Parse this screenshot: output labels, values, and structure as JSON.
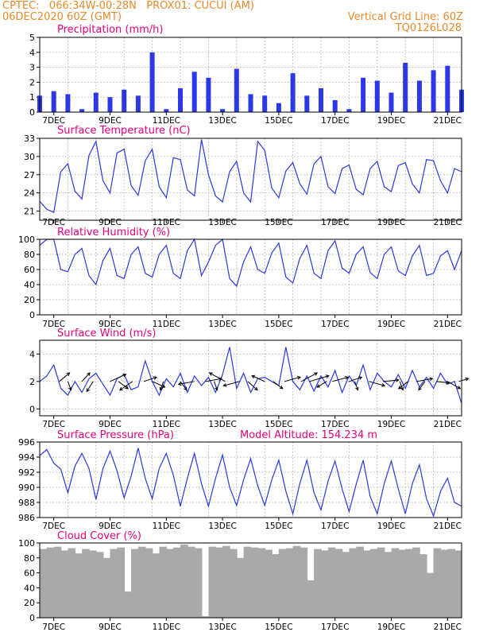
{
  "header": {
    "line1_left": "CPTEC:   066:34W-00:28N   PROX01: CUCUI (AM)",
    "line2_left": "06DEC2020 60Z (GMT)",
    "line2_right": "Vertical Grid Line: 60Z",
    "line3_right": "TQ0126L028"
  },
  "colors": {
    "title": "#e6007e",
    "header": "#e8892a",
    "line": "#2a38e6",
    "bar": "#2a38e6",
    "cloud": "#a9a9a9",
    "arrow": "#000000"
  },
  "chart_data": [
    {
      "type": "bar",
      "title": "Precipitation (mm/h)",
      "ylim": [
        0,
        5
      ],
      "yticks": [
        "0",
        "1",
        "2",
        "3",
        "4",
        "5"
      ],
      "grid": true,
      "x_tick_labels": [
        "7DEC",
        "9DEC",
        "11DEC",
        "13DEC",
        "15DEC",
        "17DEC",
        "19DEC",
        "21DEC"
      ],
      "days": [
        0.0,
        0.5,
        1.0,
        1.5,
        2.0,
        2.5,
        3.0,
        3.5,
        4.0,
        4.5,
        5.0,
        5.5,
        6.0,
        6.5,
        7.0,
        7.5,
        8.0,
        8.5,
        9.0,
        9.5,
        10.0,
        10.5,
        11.0,
        11.5,
        12.0,
        12.5,
        13.0,
        13.5,
        14.0,
        14.5,
        15.0
      ],
      "values": [
        1.1,
        1.4,
        1.2,
        0.2,
        1.3,
        1.0,
        1.5,
        1.1,
        4.0,
        0.2,
        1.6,
        2.7,
        2.3,
        0.2,
        2.9,
        1.2,
        1.1,
        0.6,
        2.6,
        1.1,
        1.6,
        0.8,
        0.2,
        2.3,
        2.1,
        1.3,
        3.3,
        2.1,
        2.8,
        3.1,
        1.5
      ]
    },
    {
      "type": "line",
      "title": "Surface Temperature (nC)",
      "ylim": [
        19.5,
        33
      ],
      "yticks": [
        "21",
        "24",
        "27",
        "30",
        "33"
      ],
      "grid": true,
      "x_tick_labels": [
        "7DEC",
        "9DEC",
        "11DEC",
        "13DEC",
        "15DEC",
        "17DEC",
        "19DEC",
        "21DEC"
      ],
      "days": [
        0.0,
        0.25,
        0.5,
        0.75,
        1.0,
        1.25,
        1.5,
        1.75,
        2.0,
        2.25,
        2.5,
        2.75,
        3.0,
        3.25,
        3.5,
        3.75,
        4.0,
        4.25,
        4.5,
        4.75,
        5.0,
        5.25,
        5.5,
        5.75,
        6.0,
        6.25,
        6.5,
        6.75,
        7.0,
        7.25,
        7.5,
        7.75,
        8.0,
        8.25,
        8.5,
        8.75,
        9.0,
        9.25,
        9.5,
        9.75,
        10.0,
        10.25,
        10.5,
        10.75,
        11.0,
        11.25,
        11.5,
        11.75,
        12.0,
        12.25,
        12.5,
        12.75,
        13.0,
        13.25,
        13.5,
        13.75,
        14.0,
        14.25,
        14.5,
        14.75,
        15.0
      ],
      "values": [
        22.6,
        21.3,
        20.8,
        27.5,
        28.8,
        24.3,
        23.0,
        30.2,
        32.5,
        26.0,
        24.0,
        30.6,
        31.2,
        25.2,
        23.6,
        29.3,
        31.2,
        25.0,
        23.2,
        29.8,
        29.5,
        24.5,
        23.5,
        32.8,
        27.0,
        23.5,
        22.5,
        27.5,
        29.2,
        24.0,
        22.5,
        32.5,
        31.0,
        24.8,
        23.2,
        27.6,
        29.0,
        25.5,
        23.8,
        28.8,
        30.0,
        25.0,
        23.9,
        28.0,
        28.6,
        24.6,
        23.7,
        28.0,
        29.2,
        25.0,
        24.2,
        28.5,
        29.0,
        25.5,
        24.0,
        29.5,
        29.3,
        26.0,
        24.0,
        28.0,
        27.5
      ]
    },
    {
      "type": "line",
      "title": "Relative Humidity (%)",
      "ylim": [
        0,
        100
      ],
      "yticks": [
        "0",
        "20",
        "40",
        "60",
        "80",
        "100"
      ],
      "grid": true,
      "x_tick_labels": [
        "7DEC",
        "9DEC",
        "11DEC",
        "13DEC",
        "15DEC",
        "17DEC",
        "19DEC",
        "21DEC"
      ],
      "days": [
        0.0,
        0.25,
        0.5,
        0.75,
        1.0,
        1.25,
        1.5,
        1.75,
        2.0,
        2.25,
        2.5,
        2.75,
        3.0,
        3.25,
        3.5,
        3.75,
        4.0,
        4.25,
        4.5,
        4.75,
        5.0,
        5.25,
        5.5,
        5.75,
        6.0,
        6.25,
        6.5,
        6.75,
        7.0,
        7.25,
        7.5,
        7.75,
        8.0,
        8.25,
        8.5,
        8.75,
        9.0,
        9.25,
        9.5,
        9.75,
        10.0,
        10.25,
        10.5,
        10.75,
        11.0,
        11.25,
        11.5,
        11.75,
        12.0,
        12.25,
        12.5,
        12.75,
        13.0,
        13.25,
        13.5,
        13.75,
        14.0,
        14.25,
        14.5,
        14.75,
        15.0
      ],
      "values": [
        92,
        100,
        100,
        60,
        57,
        80,
        88,
        52,
        40,
        72,
        88,
        52,
        48,
        80,
        90,
        55,
        50,
        80,
        92,
        55,
        48,
        85,
        100,
        52,
        70,
        92,
        100,
        48,
        38,
        70,
        90,
        60,
        55,
        82,
        95,
        50,
        42,
        75,
        92,
        55,
        48,
        85,
        98,
        62,
        55,
        80,
        90,
        56,
        48,
        80,
        90,
        58,
        52,
        78,
        92,
        52,
        55,
        78,
        85,
        60,
        85
      ]
    },
    {
      "type": "line",
      "title": "Surface Wind (m/s)",
      "ylim": [
        -0.5,
        5
      ],
      "yticks": [
        "0",
        "2",
        "4"
      ],
      "grid": true,
      "x_tick_labels": [
        "7DEC",
        "9DEC",
        "11DEC",
        "13DEC",
        "15DEC",
        "17DEC",
        "19DEC",
        "21DEC"
      ],
      "days": [
        0.0,
        0.25,
        0.5,
        0.75,
        1.0,
        1.25,
        1.5,
        1.75,
        2.0,
        2.25,
        2.5,
        2.75,
        3.0,
        3.25,
        3.5,
        3.75,
        4.0,
        4.25,
        4.5,
        4.75,
        5.0,
        5.25,
        5.5,
        5.75,
        6.0,
        6.25,
        6.5,
        6.75,
        7.0,
        7.25,
        7.5,
        7.75,
        8.0,
        8.25,
        8.5,
        8.75,
        9.0,
        9.25,
        9.5,
        9.75,
        10.0,
        10.25,
        10.5,
        10.75,
        11.0,
        11.25,
        11.5,
        11.75,
        12.0,
        12.25,
        12.5,
        12.75,
        13.0,
        13.25,
        13.5,
        13.75,
        14.0,
        14.25,
        14.5,
        14.75,
        15.0
      ],
      "values": [
        2.0,
        2.4,
        3.2,
        1.5,
        1.0,
        2.0,
        1.2,
        2.2,
        2.6,
        1.8,
        1.0,
        2.2,
        2.5,
        1.4,
        1.6,
        3.5,
        2.0,
        1.0,
        2.2,
        1.6,
        2.6,
        1.2,
        2.4,
        1.7,
        2.3,
        1.2,
        2.5,
        4.5,
        1.5,
        2.6,
        1.2,
        2.2,
        2.3,
        2.0,
        1.7,
        4.5,
        2.0,
        1.4,
        2.4,
        1.3,
        2.4,
        1.6,
        2.8,
        1.2,
        2.4,
        1.7,
        3.2,
        1.4,
        2.6,
        2.0,
        1.6,
        2.5,
        1.5,
        2.8,
        1.6,
        2.3,
        1.5,
        2.6,
        1.8,
        2.0,
        0.4
      ],
      "wind_arrows": [
        {
          "day": 0.7,
          "dx": 0.32,
          "dy": 0.6
        },
        {
          "day": 1.0,
          "dx": 0.1,
          "dy": -0.6
        },
        {
          "day": 1.5,
          "dx": 0.25,
          "dy": 0.6
        },
        {
          "day": 1.9,
          "dx": -0.2,
          "dy": -0.7
        },
        {
          "day": 2.5,
          "dx": 0.5,
          "dy": 0.5
        },
        {
          "day": 2.8,
          "dx": 0.3,
          "dy": -0.5
        },
        {
          "day": 3.3,
          "dx": -0.4,
          "dy": -0.6
        },
        {
          "day": 3.7,
          "dx": 0.4,
          "dy": 0.3
        },
        {
          "day": 4.0,
          "dx": 0.4,
          "dy": -0.4
        },
        {
          "day": 4.4,
          "dx": -0.1,
          "dy": -0.6
        },
        {
          "day": 5.0,
          "dx": 0.2,
          "dy": -0.6
        },
        {
          "day": 5.5,
          "dx": -0.5,
          "dy": -0.2
        },
        {
          "day": 5.9,
          "dx": 0.5,
          "dy": 0.2
        },
        {
          "day": 6.2,
          "dx": 0.1,
          "dy": -0.6
        },
        {
          "day": 6.6,
          "dx": -0.5,
          "dy": 0.6
        },
        {
          "day": 7.1,
          "dx": -0.5,
          "dy": -0.3
        },
        {
          "day": 7.4,
          "dx": 0.3,
          "dy": -0.6
        },
        {
          "day": 8.0,
          "dx": -0.4,
          "dy": 0.4
        },
        {
          "day": 8.3,
          "dx": 0.3,
          "dy": -0.5
        },
        {
          "day": 8.7,
          "dx": 0.5,
          "dy": 0.3
        },
        {
          "day": 9.3,
          "dx": 0.5,
          "dy": 0.6
        },
        {
          "day": 9.6,
          "dx": 0.6,
          "dy": 0.4
        },
        {
          "day": 10.2,
          "dx": -0.3,
          "dy": -0.4
        },
        {
          "day": 10.4,
          "dx": 0.5,
          "dy": 0.3
        },
        {
          "day": 11.0,
          "dx": 0.4,
          "dy": 0.3
        },
        {
          "day": 11.2,
          "dx": 0.1,
          "dy": -0.6
        },
        {
          "day": 11.7,
          "dx": 0.5,
          "dy": -0.3
        },
        {
          "day": 12.2,
          "dx": 0.5,
          "dy": 0.1
        },
        {
          "day": 12.8,
          "dx": 0.1,
          "dy": -0.6
        },
        {
          "day": 13.1,
          "dx": -0.3,
          "dy": -0.5
        },
        {
          "day": 13.4,
          "dx": 0.5,
          "dy": 0.2
        },
        {
          "day": 13.7,
          "dx": -0.2,
          "dy": -0.6
        },
        {
          "day": 14.1,
          "dx": 0.4,
          "dy": -0.1
        },
        {
          "day": 14.5,
          "dx": 0.4,
          "dy": -0.5
        },
        {
          "day": 14.9,
          "dx": 0.3,
          "dy": 0.2
        }
      ]
    },
    {
      "type": "line",
      "title": "Surface Pressure (hPa)",
      "subtitle": "Model Altitude: 154.234 m",
      "ylim": [
        986,
        996
      ],
      "yticks": [
        "986",
        "988",
        "990",
        "992",
        "994",
        "996"
      ],
      "grid": true,
      "x_tick_labels": [
        "7DEC",
        "9DEC",
        "11DEC",
        "13DEC",
        "15DEC",
        "17DEC",
        "19DEC",
        "21DEC"
      ],
      "days": [
        0.0,
        0.25,
        0.5,
        0.75,
        1.0,
        1.25,
        1.5,
        1.75,
        2.0,
        2.25,
        2.5,
        2.75,
        3.0,
        3.25,
        3.5,
        3.75,
        4.0,
        4.25,
        4.5,
        4.75,
        5.0,
        5.25,
        5.5,
        5.75,
        6.0,
        6.25,
        6.5,
        6.75,
        7.0,
        7.25,
        7.5,
        7.75,
        8.0,
        8.25,
        8.5,
        8.75,
        9.0,
        9.25,
        9.5,
        9.75,
        10.0,
        10.25,
        10.5,
        10.75,
        11.0,
        11.25,
        11.5,
        11.75,
        12.0,
        12.25,
        12.5,
        12.75,
        13.0,
        13.25,
        13.5,
        13.75,
        14.0,
        14.25,
        14.5,
        14.75,
        15.0
      ],
      "values": [
        994.2,
        995.0,
        993.2,
        992.4,
        989.3,
        992.8,
        994.5,
        992.5,
        988.4,
        992.5,
        994.8,
        992.2,
        988.6,
        991.5,
        995.2,
        991.2,
        988.5,
        992.5,
        994.5,
        991.6,
        987.5,
        991.2,
        994.5,
        990.5,
        987.5,
        991.2,
        994.3,
        990.0,
        987.6,
        991.0,
        993.8,
        990.2,
        987.6,
        991.0,
        993.6,
        989.5,
        986.5,
        990.5,
        993.6,
        989.3,
        987.0,
        990.8,
        993.5,
        989.8,
        986.8,
        990.4,
        993.6,
        988.8,
        986.5,
        990.5,
        993.5,
        989.8,
        986.5,
        990.5,
        993.0,
        988.5,
        986.2,
        989.5,
        991.2,
        988.0,
        987.5
      ]
    },
    {
      "type": "bar",
      "title": "Cloud Cover (%)",
      "ylim": [
        0,
        100
      ],
      "yticks": [
        "0",
        "20",
        "40",
        "60",
        "80",
        "100"
      ],
      "grid": false,
      "x_tick_labels": [
        "7DEC",
        "9DEC",
        "11DEC",
        "13DEC",
        "15DEC",
        "17DEC",
        "19DEC",
        "21DEC"
      ],
      "days": [
        0.0,
        0.25,
        0.5,
        0.75,
        1.0,
        1.25,
        1.5,
        1.75,
        2.0,
        2.25,
        2.5,
        2.75,
        3.0,
        3.25,
        3.5,
        3.75,
        4.0,
        4.25,
        4.5,
        4.75,
        5.0,
        5.25,
        5.5,
        5.75,
        6.0,
        6.25,
        6.5,
        6.75,
        7.0,
        7.25,
        7.5,
        7.75,
        8.0,
        8.25,
        8.5,
        8.75,
        9.0,
        9.25,
        9.5,
        9.75,
        10.0,
        10.25,
        10.5,
        10.75,
        11.0,
        11.25,
        11.5,
        11.75,
        12.0,
        12.25,
        12.5,
        12.75,
        13.0,
        13.25,
        13.5,
        13.75,
        14.0,
        14.25,
        14.5,
        14.75,
        15.0
      ],
      "values": [
        92,
        94,
        95,
        90,
        93,
        86,
        92,
        90,
        88,
        80,
        92,
        94,
        35,
        92,
        95,
        93,
        86,
        95,
        92,
        94,
        98,
        95,
        93,
        2,
        95,
        94,
        96,
        92,
        80,
        95,
        94,
        93,
        91,
        85,
        92,
        93,
        96,
        94,
        50,
        92,
        90,
        94,
        92,
        88,
        93,
        95,
        90,
        92,
        94,
        88,
        93,
        91,
        92,
        94,
        85,
        60,
        93,
        91,
        92,
        90,
        94
      ]
    }
  ]
}
